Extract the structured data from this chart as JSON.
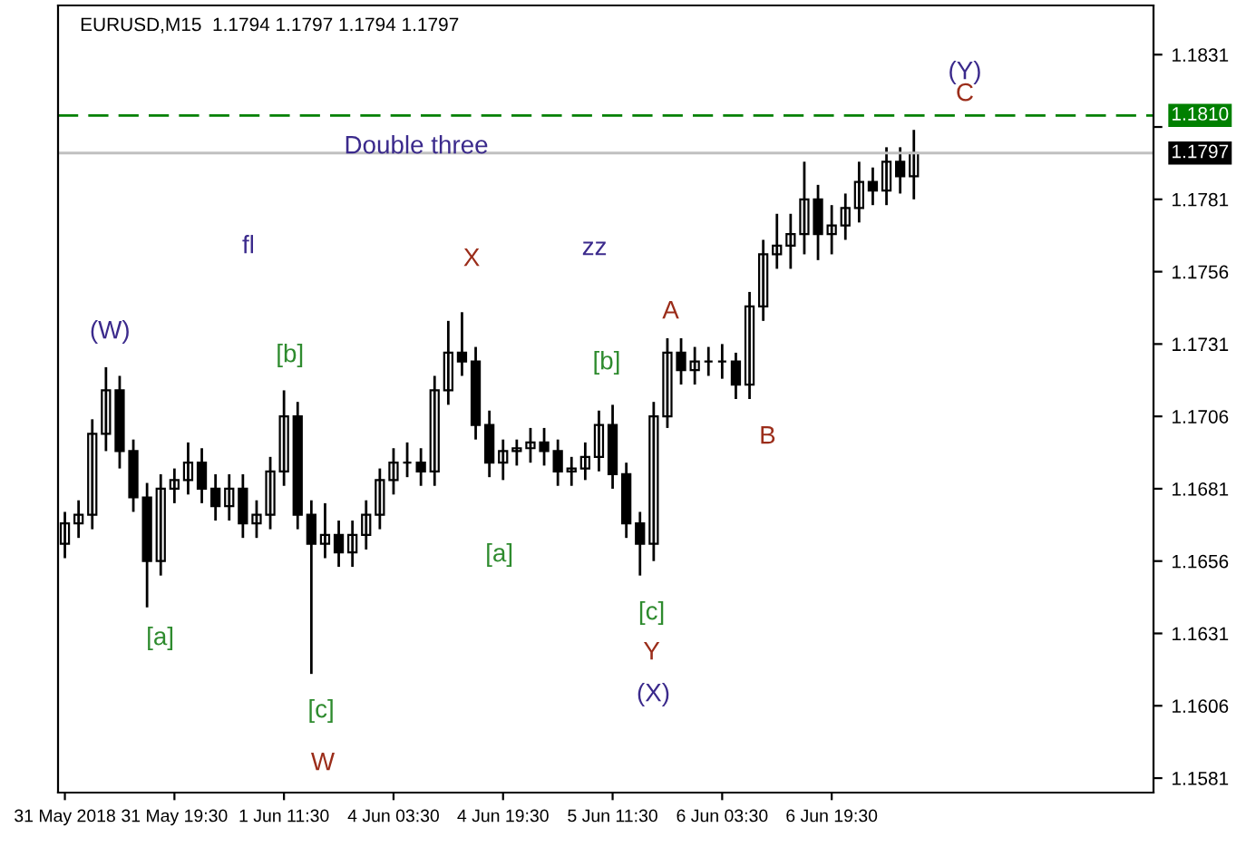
{
  "chart_data": {
    "type": "candlestick",
    "title": "EURUSD,M15  1.1794 1.1797 1.1794 1.1797",
    "categories": [
      "31 May 2018",
      null,
      null,
      null,
      null,
      null,
      null,
      null,
      "31 May 19:30",
      null,
      null,
      null,
      null,
      null,
      null,
      null,
      "1 Jun 11:30",
      null,
      null,
      null,
      null,
      null,
      null,
      null,
      "4 Jun 03:30",
      null,
      null,
      null,
      null,
      null,
      null,
      null,
      "4 Jun 19:30",
      null,
      null,
      null,
      null,
      null,
      null,
      null,
      "5 Jun 11:30",
      null,
      null,
      null,
      null,
      null,
      null,
      null,
      "6 Jun 03:30",
      null,
      null,
      null,
      null,
      null,
      null,
      null,
      "6 Jun 19:30",
      null,
      null,
      null,
      null,
      null,
      null,
      null,
      null,
      null,
      null,
      null,
      null,
      null,
      null,
      null,
      null,
      null,
      null,
      null,
      null,
      null,
      null,
      null
    ],
    "ohlc": [
      [
        1.1662,
        1.1673,
        1.1657,
        1.1669
      ],
      [
        1.1669,
        1.1677,
        1.1664,
        1.1672
      ],
      [
        1.1672,
        1.1705,
        1.1667,
        1.17
      ],
      [
        1.17,
        1.1723,
        1.1694,
        1.1715
      ],
      [
        1.1715,
        1.172,
        1.1688,
        1.1694
      ],
      [
        1.1694,
        1.1698,
        1.1673,
        1.1678
      ],
      [
        1.1678,
        1.1683,
        1.164,
        1.1656
      ],
      [
        1.1656,
        1.1686,
        1.1651,
        1.1681
      ],
      [
        1.1681,
        1.1688,
        1.1676,
        1.1684
      ],
      [
        1.1684,
        1.1697,
        1.1679,
        1.169
      ],
      [
        1.169,
        1.1695,
        1.1676,
        1.1681
      ],
      [
        1.1681,
        1.1686,
        1.167,
        1.1675
      ],
      [
        1.1675,
        1.1686,
        1.167,
        1.1681
      ],
      [
        1.1681,
        1.1686,
        1.1664,
        1.1669
      ],
      [
        1.1669,
        1.1677,
        1.1664,
        1.1672
      ],
      [
        1.1672,
        1.1692,
        1.1667,
        1.1687
      ],
      [
        1.1687,
        1.1715,
        1.1682,
        1.1706
      ],
      [
        1.1706,
        1.1711,
        1.1667,
        1.1672
      ],
      [
        1.1672,
        1.1677,
        1.1617,
        1.1662
      ],
      [
        1.1662,
        1.1676,
        1.1657,
        1.1665
      ],
      [
        1.1665,
        1.167,
        1.1654,
        1.1659
      ],
      [
        1.1659,
        1.167,
        1.1654,
        1.1665
      ],
      [
        1.1665,
        1.1677,
        1.166,
        1.1672
      ],
      [
        1.1672,
        1.1688,
        1.1667,
        1.1684
      ],
      [
        1.1684,
        1.1695,
        1.1679,
        1.169
      ],
      [
        1.169,
        1.1697,
        1.1685,
        1.169
      ],
      [
        1.169,
        1.1695,
        1.1682,
        1.1687
      ],
      [
        1.1687,
        1.172,
        1.1682,
        1.1715
      ],
      [
        1.1715,
        1.1739,
        1.171,
        1.1728
      ],
      [
        1.1728,
        1.1742,
        1.172,
        1.1725
      ],
      [
        1.1725,
        1.173,
        1.1698,
        1.1703
      ],
      [
        1.1703,
        1.1708,
        1.1685,
        1.169
      ],
      [
        1.169,
        1.1698,
        1.1684,
        1.1694
      ],
      [
        1.1694,
        1.1698,
        1.1689,
        1.1695
      ],
      [
        1.1695,
        1.1702,
        1.169,
        1.1697
      ],
      [
        1.1697,
        1.1702,
        1.1689,
        1.1694
      ],
      [
        1.1694,
        1.1698,
        1.1682,
        1.1687
      ],
      [
        1.1687,
        1.1692,
        1.1682,
        1.1688
      ],
      [
        1.1688,
        1.1697,
        1.1684,
        1.1692
      ],
      [
        1.1692,
        1.1708,
        1.1687,
        1.1703
      ],
      [
        1.1703,
        1.171,
        1.1681,
        1.1686
      ],
      [
        1.1686,
        1.169,
        1.1664,
        1.1669
      ],
      [
        1.1669,
        1.1673,
        1.1651,
        1.1662
      ],
      [
        1.1662,
        1.1711,
        1.1656,
        1.1706
      ],
      [
        1.1706,
        1.1733,
        1.1702,
        1.1728
      ],
      [
        1.1728,
        1.1733,
        1.1717,
        1.1722
      ],
      [
        1.1722,
        1.173,
        1.1717,
        1.1725
      ],
      [
        1.1725,
        1.173,
        1.172,
        1.1725
      ],
      [
        1.1725,
        1.1731,
        1.1719,
        1.1725
      ],
      [
        1.1725,
        1.1728,
        1.1712,
        1.1717
      ],
      [
        1.1717,
        1.1749,
        1.1712,
        1.1744
      ],
      [
        1.1744,
        1.1767,
        1.1739,
        1.1762
      ],
      [
        1.1762,
        1.1776,
        1.1757,
        1.1765
      ],
      [
        1.1765,
        1.1776,
        1.1757,
        1.1769
      ],
      [
        1.1769,
        1.1794,
        1.1762,
        1.1781
      ],
      [
        1.1781,
        1.1786,
        1.176,
        1.1769
      ],
      [
        1.1769,
        1.1779,
        1.1762,
        1.1772
      ],
      [
        1.1772,
        1.1783,
        1.1767,
        1.1778
      ],
      [
        1.1778,
        1.1794,
        1.1773,
        1.1787
      ],
      [
        1.1787,
        1.1792,
        1.1779,
        1.1784
      ],
      [
        1.1784,
        1.1799,
        1.1779,
        1.1794
      ],
      [
        1.1794,
        1.1799,
        1.1783,
        1.1789
      ],
      [
        1.1789,
        1.1805,
        1.1781,
        1.1797
      ],
      null,
      null,
      null,
      null,
      null,
      null,
      null,
      null,
      null,
      null,
      null,
      null,
      null,
      null,
      null,
      null,
      null
    ],
    "ylim": [
      1.1576,
      1.1848
    ],
    "yticks": [
      1.1581,
      1.1606,
      1.1631,
      1.1656,
      1.1681,
      1.1706,
      1.1731,
      1.1756,
      1.1781,
      {
        "value": 1.1806,
        "label": null
      },
      1.1831
    ],
    "ref_lines": [
      {
        "axis": "y",
        "value": 1.181,
        "label": "1.1810",
        "color": "#008000",
        "line_style": "dashed"
      },
      {
        "axis": "y",
        "value": 1.1797,
        "label": "1.1797",
        "color": "#c0c0c0",
        "line_style": "solid"
      }
    ],
    "annotations": [
      "(W)",
      "fl",
      "X",
      "zz",
      "Double three",
      "A",
      "B",
      "(Y)",
      "C",
      "[b]",
      "[b]",
      "[a]",
      "[a]",
      "[c]",
      "[c]",
      "W",
      "Y",
      "(X)"
    ],
    "grid": false,
    "legend": false
  }
}
